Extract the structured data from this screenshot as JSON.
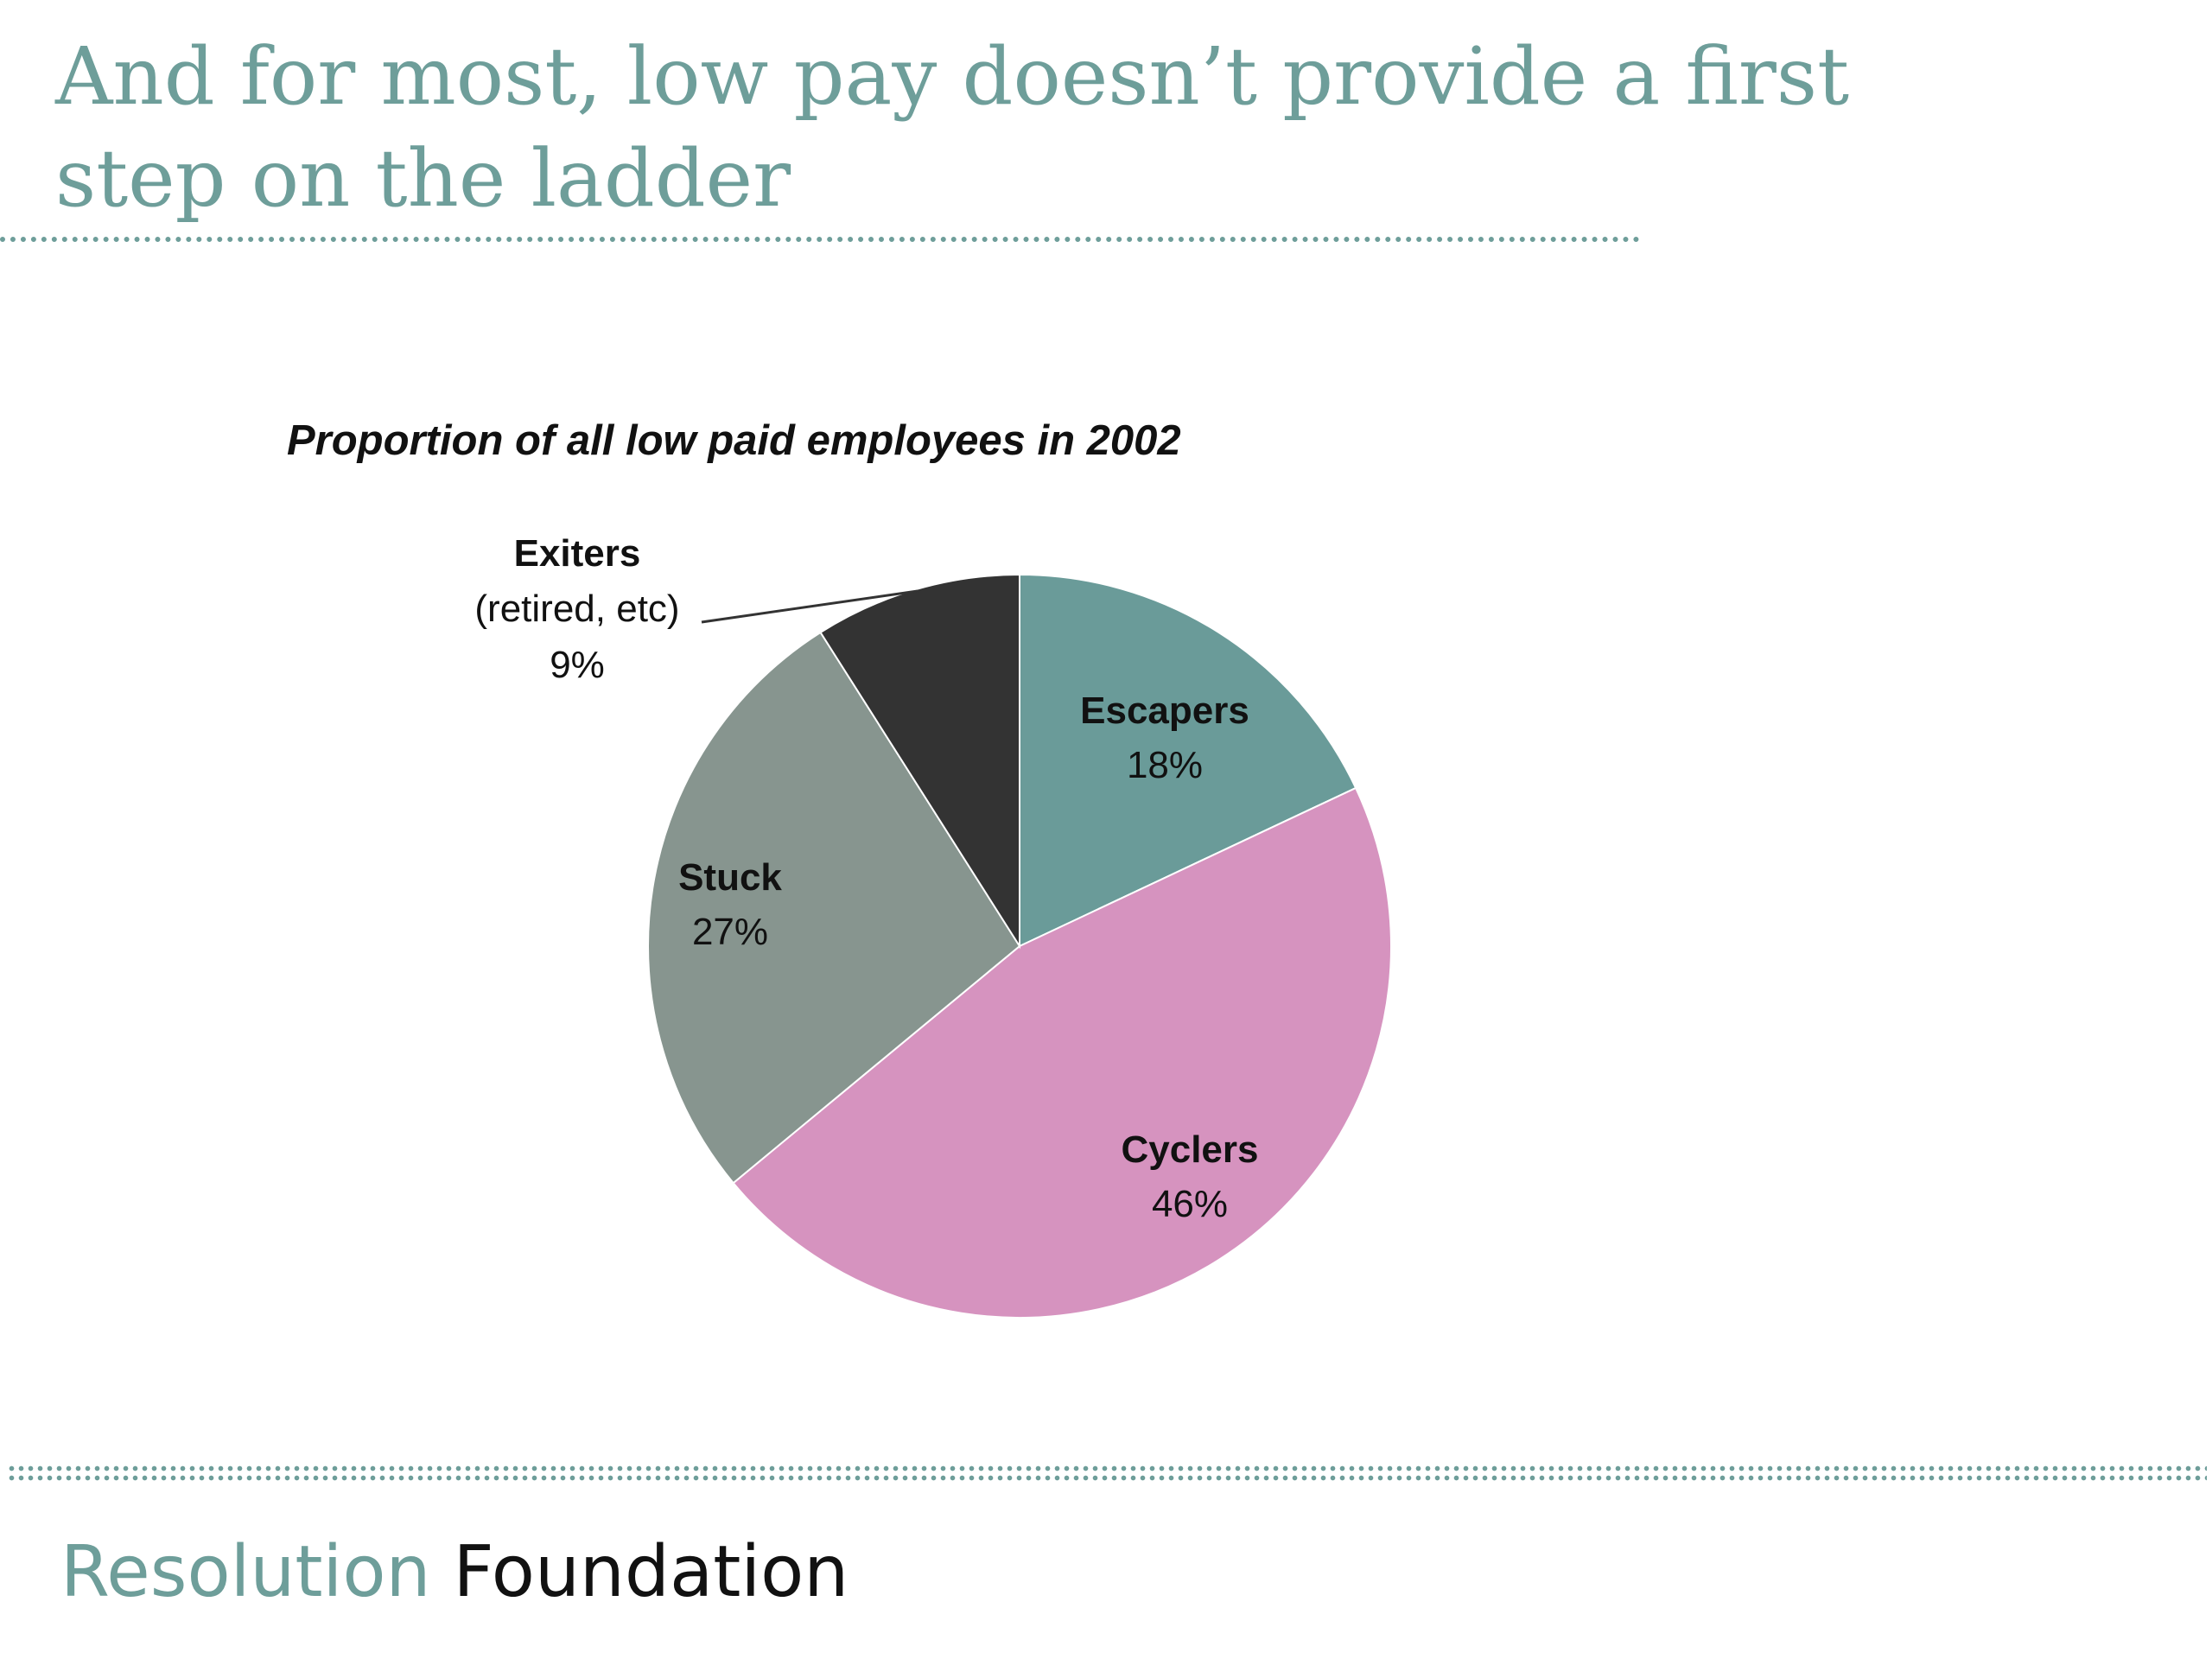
{
  "slide": {
    "title": "And for most, low pay doesn’t provide a first step on the ladder"
  },
  "footer": {
    "brand_part_1": "Resolution",
    "brand_part_2": "Foundation"
  },
  "colors": {
    "accent": "#6e9e9a",
    "escapers": "#6a9b99",
    "cyclers": "#d693bf",
    "stuck": "#87958f",
    "exiters": "#333333"
  },
  "chart_data": {
    "type": "pie",
    "title": "Proportion of all low paid employees in 2002",
    "slices": [
      {
        "name": "Escapers",
        "value": 18,
        "label": "18%",
        "note": "",
        "color": "#6a9b99"
      },
      {
        "name": "Cyclers",
        "value": 46,
        "label": "46%",
        "note": "",
        "color": "#d693bf"
      },
      {
        "name": "Stuck",
        "value": 27,
        "label": "27%",
        "note": "",
        "color": "#87958f"
      },
      {
        "name": "Exiters",
        "value": 9,
        "label": "9%",
        "note": "(retired, etc)",
        "color": "#333333"
      }
    ],
    "start": "top",
    "direction": "clockwise",
    "legend": "none"
  }
}
